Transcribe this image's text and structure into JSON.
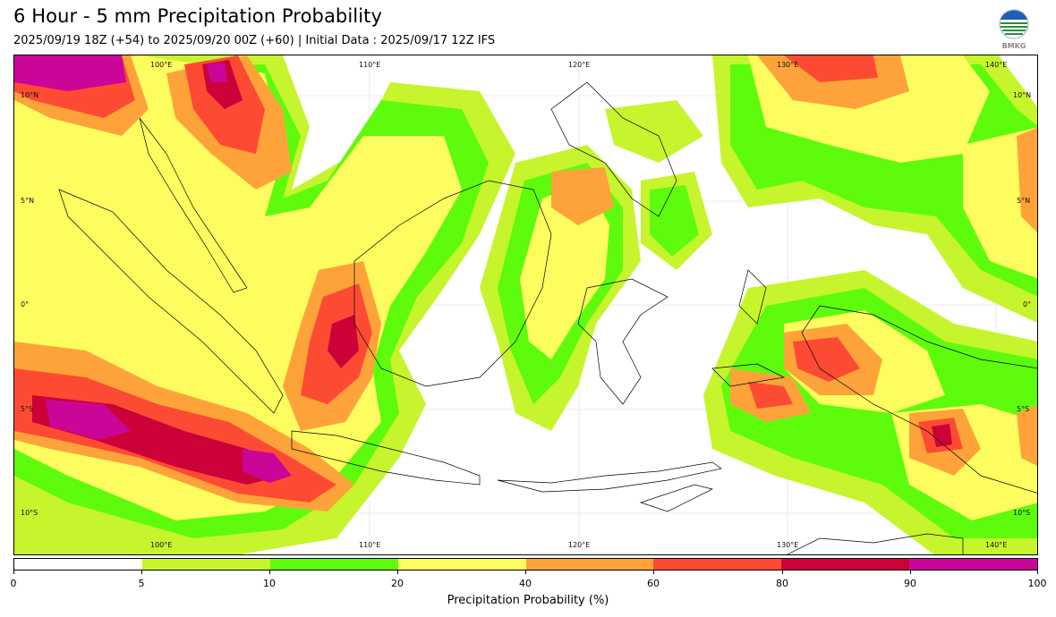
{
  "header": {
    "title": "6 Hour - 5 mm Precipitation Probability",
    "subtitle": "2025/09/19 18Z (+54) to 2025/09/20 00Z (+60) | Initial Data : 2025/09/17 12Z IFS",
    "logo_text": "BMKG"
  },
  "map": {
    "lon_labels_top": [
      "100°E",
      "110°E",
      "120°E",
      "130°E",
      "140°E"
    ],
    "lon_labels_bottom": [
      "100°E",
      "110°E",
      "120°E",
      "130°E",
      "140°E"
    ],
    "lat_labels_left": [
      "10°N",
      "5°N",
      "0°",
      "5°S",
      "10°S"
    ],
    "lat_labels_right": [
      "10°N",
      "5°N",
      "0°",
      "5°S",
      "10°S"
    ]
  },
  "colorbar": {
    "label": "Precipitation Probability (%)",
    "ticks": [
      "0",
      "5",
      "10",
      "20",
      "40",
      "60",
      "80",
      "90",
      "100"
    ],
    "colors": [
      "#ffffff",
      "#c6f52d",
      "#5efb0c",
      "#fdfd5f",
      "#fea33a",
      "#fd4b33",
      "#cc0138",
      "#cc0599"
    ]
  }
}
